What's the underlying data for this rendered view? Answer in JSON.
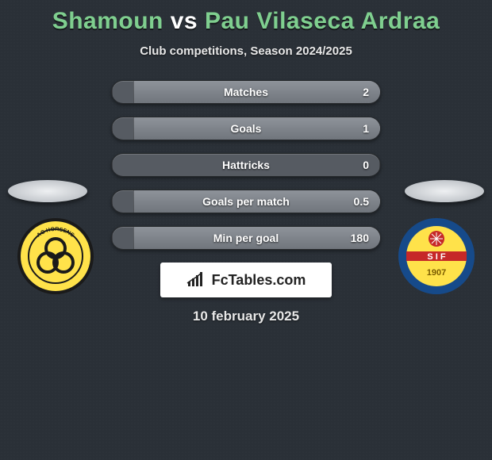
{
  "title_left": "Shamoun",
  "title_vs": "vs",
  "title_right": "Pau Vilaseca Ardraa",
  "subtitle": "Club competitions, Season 2024/2025",
  "date": "10 february 2025",
  "brand": "FcTables.com",
  "colors": {
    "background": "#2a3037",
    "accent": "#7fcf8f",
    "row_bg": "#565b62",
    "row_fill": "#80858c",
    "text": "#ffffff"
  },
  "left_crest": {
    "outer": "#1a1a1a",
    "ring": "#ffe24a",
    "inner": "#ffe24a",
    "rings_stroke": "#1a1a1a",
    "label": "AC HORSENS"
  },
  "right_crest": {
    "outer": "#164a8a",
    "inner": "#ffe24a",
    "stripe": "#c62828",
    "text_initials": "S  I  F",
    "year": "1907"
  },
  "rows": [
    {
      "label": "Matches",
      "left": "",
      "right": "2",
      "fill_left_pct": 0,
      "fill_right_pct": 92
    },
    {
      "label": "Goals",
      "left": "",
      "right": "1",
      "fill_left_pct": 0,
      "fill_right_pct": 92
    },
    {
      "label": "Hattricks",
      "left": "",
      "right": "0",
      "fill_left_pct": 0,
      "fill_right_pct": 0
    },
    {
      "label": "Goals per match",
      "left": "",
      "right": "0.5",
      "fill_left_pct": 0,
      "fill_right_pct": 92
    },
    {
      "label": "Min per goal",
      "left": "",
      "right": "180",
      "fill_left_pct": 0,
      "fill_right_pct": 92
    }
  ]
}
